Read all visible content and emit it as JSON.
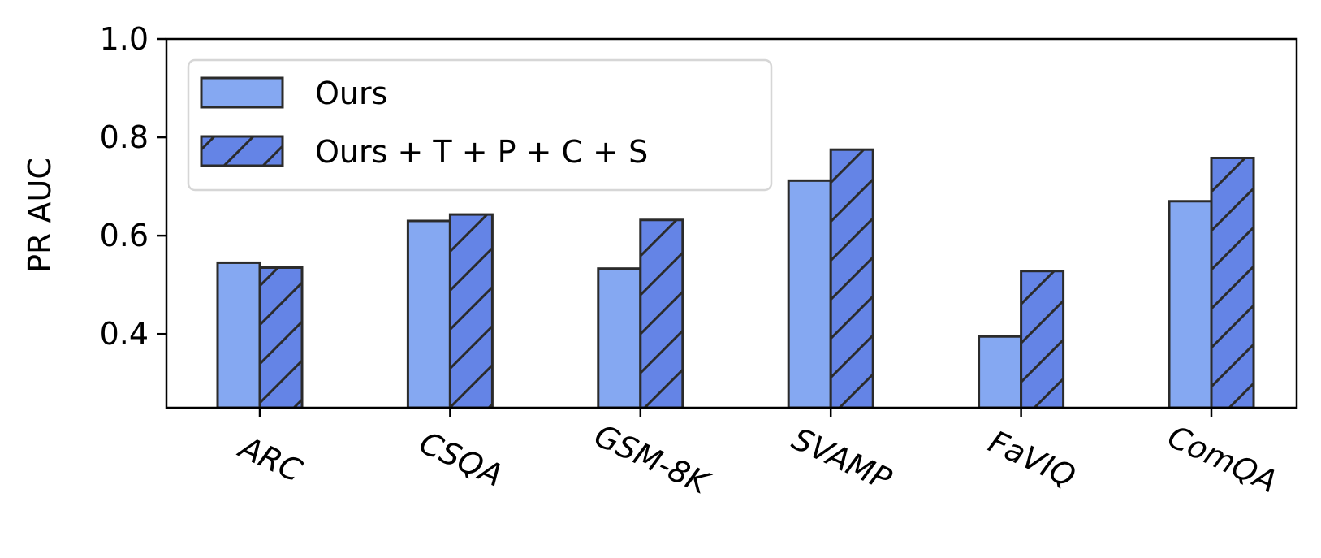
{
  "chart_data": {
    "type": "bar",
    "categories": [
      "ARC",
      "CSQA",
      "GSM-8K",
      "SVAMP",
      "FaVIQ",
      "ComQA"
    ],
    "series": [
      {
        "name": "Ours",
        "values": [
          0.545,
          0.63,
          0.533,
          0.712,
          0.395,
          0.67
        ],
        "color": "#85A8F2",
        "hatch": false
      },
      {
        "name": "Ours + T + P + C + S",
        "values": [
          0.535,
          0.643,
          0.632,
          0.775,
          0.528,
          0.758
        ],
        "color": "#6484E6",
        "hatch": true
      }
    ],
    "title": "",
    "xlabel": "",
    "ylabel": "PR AUC",
    "ylim": [
      0.25,
      1.0
    ],
    "yticks": [
      0.4,
      0.6,
      0.8,
      1.0
    ],
    "ytick_labels": [
      "0.4",
      "0.6",
      "0.8",
      "1.0"
    ],
    "grid": false,
    "legend_position": "upper-left",
    "edge_color": "#2B2B2B"
  }
}
